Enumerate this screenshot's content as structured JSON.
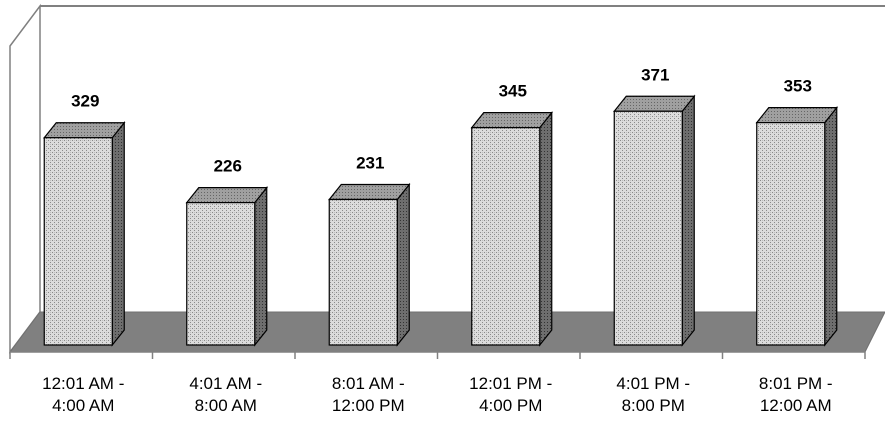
{
  "chart_data": {
    "type": "bar",
    "style": "3d-column",
    "categories": [
      [
        "12:01 AM -",
        "4:00 AM"
      ],
      [
        "4:01 AM -",
        "8:00 AM"
      ],
      [
        "8:01 AM -",
        "12:00 PM"
      ],
      [
        "12:01 PM -",
        "4:00 PM"
      ],
      [
        "4:01 PM -",
        "8:00 PM"
      ],
      [
        "8:01 PM -",
        "12:00 AM"
      ]
    ],
    "values": [
      329,
      226,
      231,
      345,
      371,
      353
    ],
    "ylim": [
      0,
      500
    ],
    "grid": false,
    "legend": "none",
    "data_labels": true,
    "colors": {
      "bar_front": "#d9d9d9",
      "bar_pattern": "#9a9a9a",
      "bar_top": "#8c8c8c",
      "bar_side": "#555555",
      "floor": "#808080",
      "walls": "#ffffff",
      "wall_edge": "#808080"
    }
  }
}
